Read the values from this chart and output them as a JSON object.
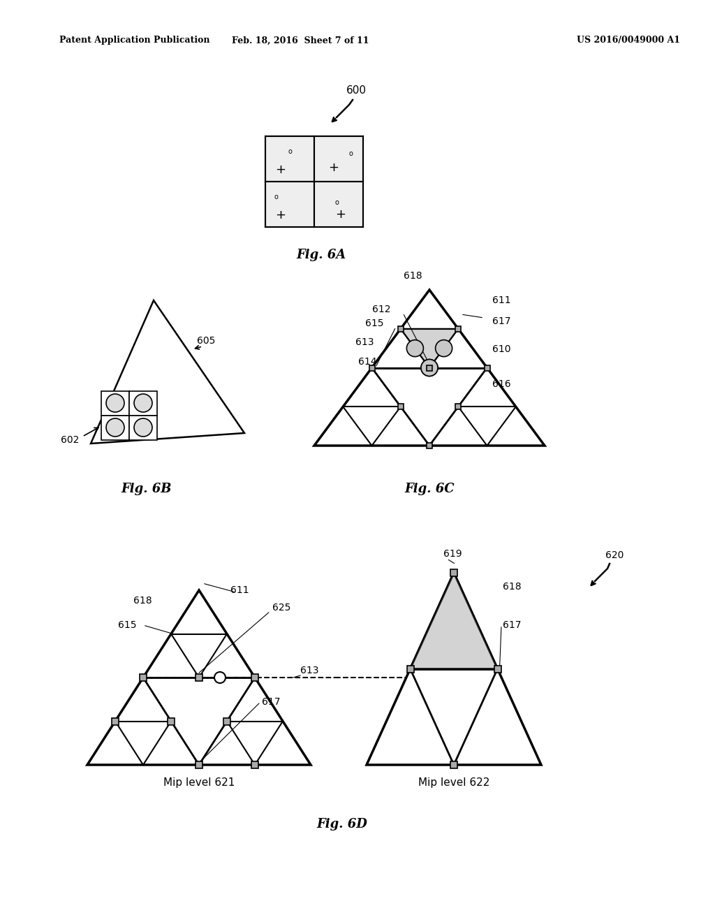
{
  "header_left": "Patent Application Publication",
  "header_mid": "Feb. 18, 2016  Sheet 7 of 11",
  "header_right": "US 2016/0049000 A1",
  "fig6a_label": "Fig. 6A",
  "fig6b_label": "Fig. 6B",
  "fig6c_label": "Fig. 6C",
  "fig6d_label": "Fig. 6D",
  "ref600": "600",
  "ref602": "602",
  "ref605": "605",
  "ref610": "610",
  "ref611": "611",
  "ref612": "612",
  "ref613": "613",
  "ref614": "614",
  "ref615": "615",
  "ref616": "616",
  "ref617": "617",
  "ref618": "618",
  "ref619": "619",
  "ref620": "620",
  "ref621": "Mip level 621",
  "ref622": "Mip level 622",
  "ref625": "625",
  "bg_color": "#ffffff",
  "line_color": "#000000",
  "gray_fill": "#c8c8c8",
  "hatch_fill": "//",
  "dot_fill": "#e8e8e8"
}
